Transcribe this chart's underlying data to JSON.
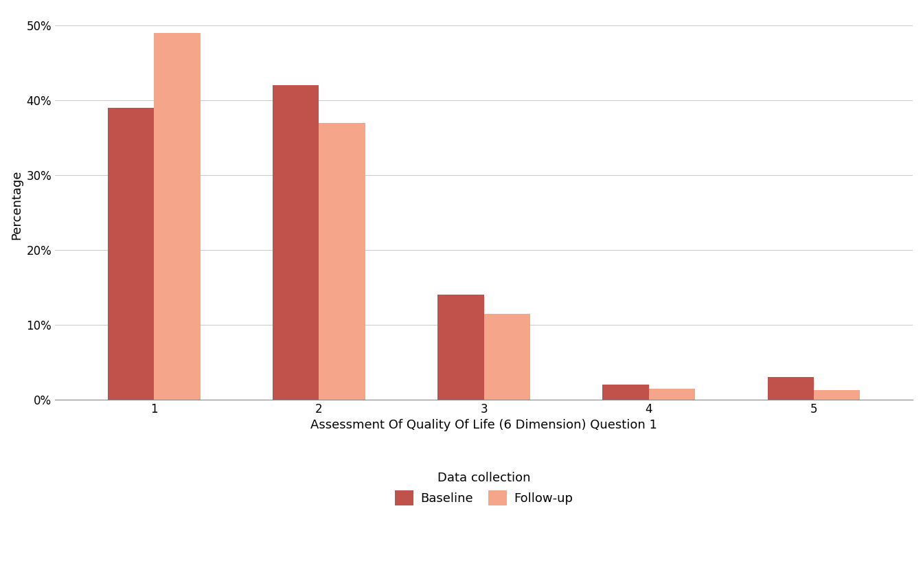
{
  "categories": [
    1,
    2,
    3,
    4,
    5
  ],
  "baseline": [
    0.39,
    0.42,
    0.14,
    0.02,
    0.03
  ],
  "followup": [
    0.49,
    0.37,
    0.115,
    0.015,
    0.013
  ],
  "baseline_color": "#C0514B",
  "followup_color": "#F4A58A",
  "xlabel": "Assessment Of Quality Of Life (6 Dimension) Question 1",
  "ylabel": "Percentage",
  "ylim": [
    0,
    0.52
  ],
  "yticks": [
    0.0,
    0.1,
    0.2,
    0.3,
    0.4,
    0.5
  ],
  "legend_title": "Data collection",
  "legend_labels": [
    "Baseline",
    "Follow-up"
  ],
  "bar_width": 0.28,
  "background_color": "#FFFFFF",
  "grid_color": "#CCCCCC",
  "axis_fontsize": 13,
  "tick_fontsize": 12,
  "legend_fontsize": 13
}
